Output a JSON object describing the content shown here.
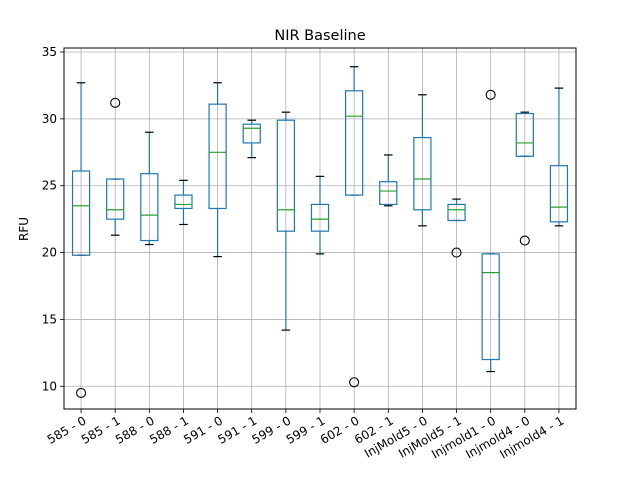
{
  "chart_data": {
    "type": "box",
    "title": "NIR Baseline",
    "ylabel": "RFU",
    "xlabel": "",
    "ylim": [
      8.3,
      35.3
    ],
    "yticks": [
      10,
      15,
      20,
      25,
      30,
      35
    ],
    "grid": true,
    "colors": {
      "box": "#1f77b4",
      "median": "#2ca02c",
      "outlier": "#000000",
      "grid": "#b0b0b0"
    },
    "categories": [
      "585 - 0",
      "585 - 1",
      "588 - 0",
      "588 - 1",
      "591 - 0",
      "591 - 1",
      "599 - 0",
      "599 - 1",
      "602 - 0",
      "602 - 1",
      "InjMold5 - 0",
      "InjMold5 - 1",
      "Injmold1 - 0",
      "Injmold4 - 0",
      "Injmold4 - 1"
    ],
    "boxes": [
      {
        "whisker_low": 19.8,
        "q1": 19.8,
        "median": 23.5,
        "q3": 26.1,
        "whisker_high": 32.7,
        "outliers": [
          9.5
        ]
      },
      {
        "whisker_low": 21.3,
        "q1": 22.5,
        "median": 23.2,
        "q3": 25.5,
        "whisker_high": 25.5,
        "outliers": [
          31.2
        ]
      },
      {
        "whisker_low": 20.6,
        "q1": 20.9,
        "median": 22.8,
        "q3": 25.9,
        "whisker_high": 29.0,
        "outliers": []
      },
      {
        "whisker_low": 22.1,
        "q1": 23.3,
        "median": 23.6,
        "q3": 24.3,
        "whisker_high": 25.4,
        "outliers": []
      },
      {
        "whisker_low": 19.7,
        "q1": 23.3,
        "median": 27.5,
        "q3": 31.1,
        "whisker_high": 32.7,
        "outliers": []
      },
      {
        "whisker_low": 27.1,
        "q1": 28.2,
        "median": 29.3,
        "q3": 29.6,
        "whisker_high": 29.9,
        "outliers": []
      },
      {
        "whisker_low": 14.2,
        "q1": 21.6,
        "median": 23.2,
        "q3": 29.9,
        "whisker_high": 30.5,
        "outliers": []
      },
      {
        "whisker_low": 19.9,
        "q1": 21.6,
        "median": 22.5,
        "q3": 23.6,
        "whisker_high": 25.7,
        "outliers": []
      },
      {
        "whisker_low": 24.3,
        "q1": 24.3,
        "median": 30.2,
        "q3": 32.1,
        "whisker_high": 33.9,
        "outliers": [
          10.3
        ]
      },
      {
        "whisker_low": 23.5,
        "q1": 23.6,
        "median": 24.6,
        "q3": 25.3,
        "whisker_high": 27.3,
        "outliers": []
      },
      {
        "whisker_low": 22.0,
        "q1": 23.2,
        "median": 25.5,
        "q3": 28.6,
        "whisker_high": 31.8,
        "outliers": []
      },
      {
        "whisker_low": 22.4,
        "q1": 22.4,
        "median": 23.2,
        "q3": 23.6,
        "whisker_high": 24.0,
        "outliers": [
          20.0
        ]
      },
      {
        "whisker_low": 11.1,
        "q1": 12.0,
        "median": 18.5,
        "q3": 19.9,
        "whisker_high": 19.9,
        "outliers": [
          31.8
        ]
      },
      {
        "whisker_low": 27.2,
        "q1": 27.2,
        "median": 28.2,
        "q3": 30.4,
        "whisker_high": 30.5,
        "outliers": [
          20.9
        ]
      },
      {
        "whisker_low": 22.0,
        "q1": 22.3,
        "median": 23.4,
        "q3": 26.5,
        "whisker_high": 32.3,
        "outliers": []
      }
    ]
  }
}
